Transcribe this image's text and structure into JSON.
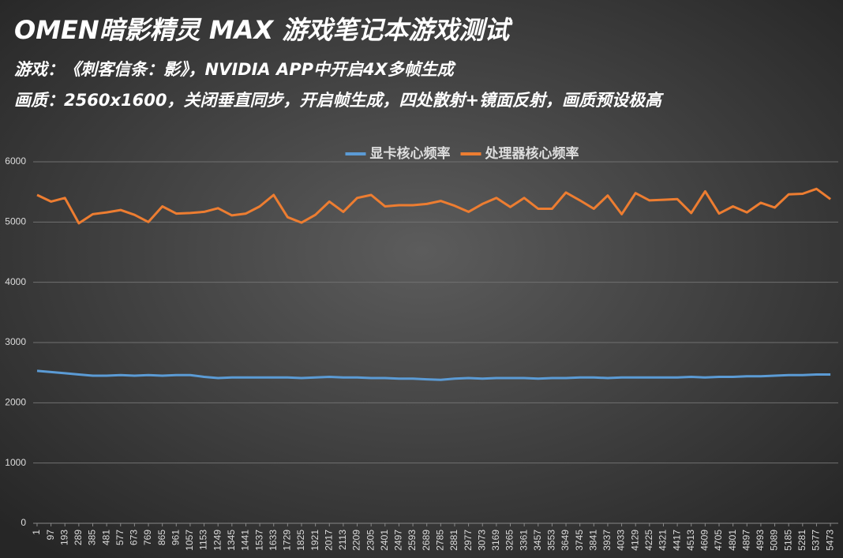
{
  "chart_data": {
    "type": "line",
    "title": "OMEN暗影精灵 MAX 游戏笔记本游戏测试",
    "subtitles": [
      "游戏：《刺客信条：影》，NVIDIA APP中开启4X多帧生成",
      "画质：2560x1600，关闭垂直同步，开启帧生成，四处散射+镜面反射，画质预设极高"
    ],
    "x": [
      1,
      97,
      193,
      289,
      385,
      481,
      577,
      673,
      769,
      865,
      961,
      1057,
      1153,
      1249,
      1345,
      1441,
      1537,
      1633,
      1729,
      1825,
      1921,
      2017,
      2113,
      2209,
      2305,
      2401,
      2497,
      2593,
      2689,
      2785,
      2881,
      2977,
      3073,
      3169,
      3265,
      3361,
      3457,
      3553,
      3649,
      3745,
      3841,
      3937,
      4033,
      4129,
      4225,
      4321,
      4417,
      4513,
      4609,
      4705,
      4801,
      4897,
      4993,
      5089,
      5185,
      5281,
      5377,
      5473
    ],
    "series": [
      {
        "name": "显卡核心频率",
        "color": "#5b9bd5",
        "values": [
          2530,
          2510,
          2490,
          2470,
          2450,
          2450,
          2460,
          2450,
          2460,
          2450,
          2460,
          2460,
          2430,
          2410,
          2420,
          2420,
          2420,
          2420,
          2420,
          2410,
          2420,
          2430,
          2420,
          2420,
          2410,
          2410,
          2400,
          2400,
          2390,
          2380,
          2400,
          2410,
          2400,
          2410,
          2410,
          2410,
          2400,
          2410,
          2410,
          2420,
          2420,
          2410,
          2420,
          2420,
          2420,
          2420,
          2420,
          2430,
          2420,
          2430,
          2430,
          2440,
          2440,
          2450,
          2460,
          2460,
          2470,
          2470
        ]
      },
      {
        "name": "处理器核心频率",
        "color": "#ed7d31",
        "values": [
          5450,
          5340,
          5400,
          4980,
          5130,
          5160,
          5200,
          5120,
          5000,
          5260,
          5140,
          5150,
          5170,
          5230,
          5110,
          5140,
          5260,
          5450,
          5080,
          4990,
          5120,
          5340,
          5170,
          5400,
          5450,
          5260,
          5280,
          5280,
          5300,
          5350,
          5270,
          5170,
          5300,
          5400,
          5250,
          5400,
          5220,
          5220,
          5490,
          5360,
          5220,
          5440,
          5130,
          5480,
          5360,
          5370,
          5380,
          5150,
          5510,
          5140,
          5260,
          5160,
          5320,
          5240,
          5460,
          5470,
          5550,
          5380
        ]
      }
    ],
    "xlim": [
      -26,
      5527
    ],
    "xticks": [
      1,
      97,
      193,
      289,
      385,
      481,
      577,
      673,
      769,
      865,
      961,
      1057,
      1153,
      1249,
      1345,
      1441,
      1537,
      1633,
      1729,
      1825,
      1921,
      2017,
      2113,
      2209,
      2305,
      2401,
      2497,
      2593,
      2689,
      2785,
      2881,
      2977,
      3073,
      3169,
      3265,
      3361,
      3457,
      3553,
      3649,
      3745,
      3841,
      3937,
      4033,
      4129,
      4225,
      4321,
      4417,
      4513,
      4609,
      4705,
      4801,
      4897,
      4993,
      5089,
      5185,
      5281,
      5377,
      5473
    ],
    "ylim": [
      0,
      6000
    ],
    "yticks": [
      0,
      1000,
      2000,
      3000,
      4000,
      5000,
      6000
    ],
    "grid": true,
    "legend": "top"
  }
}
